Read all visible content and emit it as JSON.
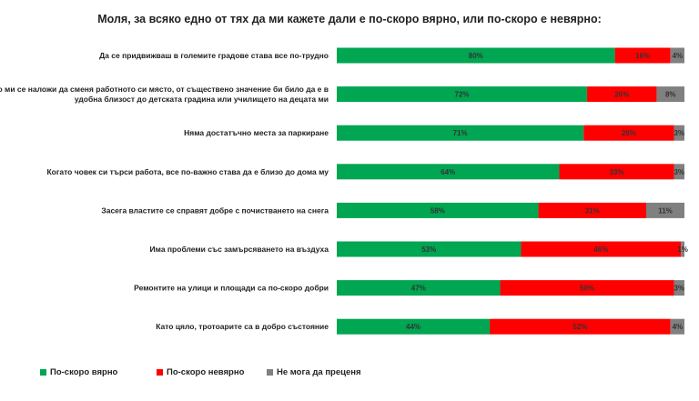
{
  "chart_data": {
    "type": "bar",
    "orientation": "horizontal",
    "stacked": true,
    "title": "Моля, за всяко едно от тях да ми кажете дали е по-скоро вярно, или по-скоро е невярно:",
    "categories": [
      "Да се придвижваш в големите градове става все по-трудно",
      "Ако ми се наложи да сменя работното си място, от съществено значение би било да е в удобна близост до детската градина или училището на децата ми",
      "Няма достатъчно места за паркиране",
      "Когато човек си търси работа, все по-важно става да е близо до дома му",
      "Засега властите се справят добре с почистването на снега",
      "Има проблеми със замърсяването на въздуха",
      "Ремонтите на улици и площади са по-скоро добри",
      "Като цяло, тротоарите са в добро състояние"
    ],
    "category_lines": [
      [
        "Да се придвижваш в големите градове става все по-трудно"
      ],
      [
        "Ако ми се наложи да сменя работното си място, от съществено значение би било да е в",
        "удобна близост до детската градина или училището на децата ми"
      ],
      [
        "Няма достатъчно места за паркиране"
      ],
      [
        "Когато човек си търси работа, все по-важно става да е близо до дома му"
      ],
      [
        "Засега властите се справят добре с почистването на снега"
      ],
      [
        "Има проблеми със замърсяването на въздуха"
      ],
      [
        "Ремонтите на улици и площади са по-скоро добри"
      ],
      [
        "Като цяло, тротоарите са в добро състояние"
      ]
    ],
    "series": [
      {
        "name": "По-скоро вярно",
        "color": "#00A651",
        "values": [
          80,
          72,
          71,
          64,
          58,
          53,
          47,
          44
        ]
      },
      {
        "name": "По-скоро невярно",
        "color": "#FF0000",
        "values": [
          16,
          20,
          26,
          33,
          31,
          46,
          50,
          52
        ]
      },
      {
        "name": "Не мога да преценя",
        "color": "#808080",
        "values": [
          4,
          8,
          3,
          3,
          11,
          1,
          3,
          4
        ]
      }
    ],
    "value_suffix": "%",
    "xlim": [
      0,
      100
    ],
    "legend_position": "bottom"
  }
}
